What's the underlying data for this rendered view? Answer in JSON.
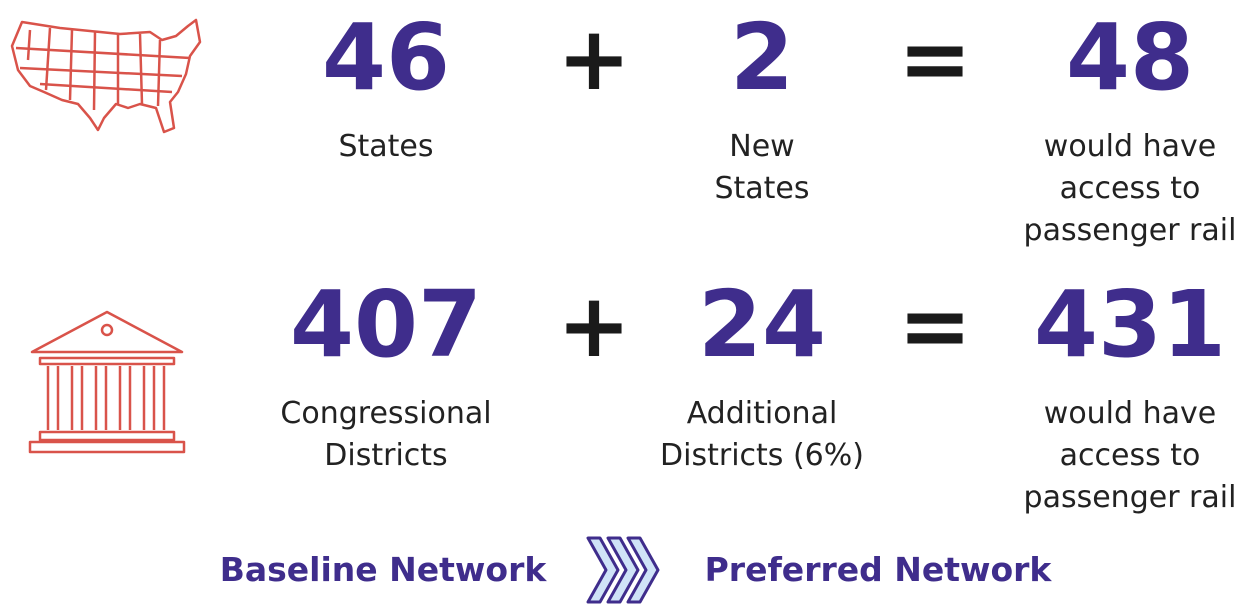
{
  "rows": [
    {
      "terms": [
        {
          "value": 46,
          "label": [
            "States"
          ]
        },
        {
          "value": 2,
          "label": [
            "New",
            "States"
          ]
        },
        {
          "value": 48,
          "label": [
            "would have",
            "access to",
            "passenger rail"
          ]
        }
      ],
      "plus": "+",
      "equals": "="
    },
    {
      "terms": [
        {
          "value": 407,
          "label": [
            "Congressional",
            "Districts"
          ]
        },
        {
          "value": 24,
          "label": [
            "Additional",
            "Districts (6%)"
          ]
        },
        {
          "value": 431,
          "label": [
            "would have",
            "access to",
            "passenger rail"
          ]
        }
      ],
      "plus": "+",
      "equals": "="
    }
  ],
  "footer": {
    "from": "Baseline Network",
    "to": "Preferred Network"
  }
}
